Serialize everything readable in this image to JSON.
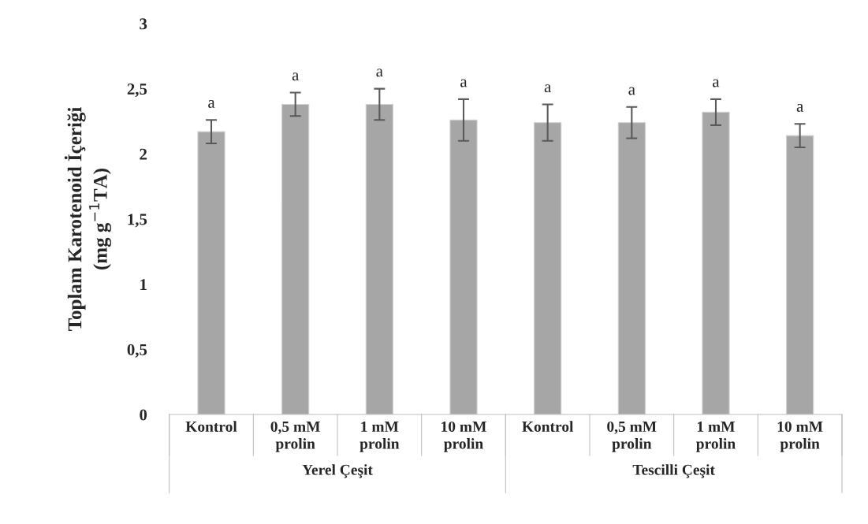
{
  "chart_data": {
    "type": "bar",
    "ylabel": "Toplam Karotenoid İçeriği\n(mg g$^{−1}$TA)",
    "categories": [
      "Kontrol",
      "0,5 mM\nprolin",
      "1 mM\nprolin",
      "10 mM\nprolin",
      "Kontrol",
      "0,5 mM\nprolin",
      "1 mM\nprolin",
      "10 mM\nprolin"
    ],
    "values": [
      2.17,
      2.38,
      2.38,
      2.26,
      2.24,
      2.24,
      2.32,
      2.14
    ],
    "errors": [
      0.09,
      0.09,
      0.12,
      0.16,
      0.14,
      0.12,
      0.1,
      0.09
    ],
    "color": "#a6a6a6",
    "ylim": [
      0,
      3
    ],
    "yticks": [
      0,
      {
        "value": 0.5,
        "label": "0,5"
      },
      1,
      {
        "value": 1.5,
        "label": "1,5"
      },
      2,
      {
        "value": 2.5,
        "label": "2,5"
      },
      3
    ],
    "annotations": [
      "a",
      "a",
      "a",
      "a",
      "a",
      "a",
      "a",
      "a",
      "Yerel Çeşit",
      "Tescilli Çeşit"
    ],
    "grid": false
  }
}
